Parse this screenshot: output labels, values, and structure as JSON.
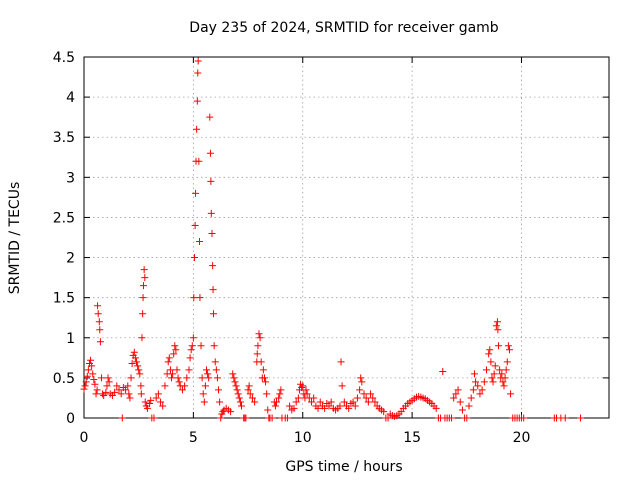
{
  "chart_data": {
    "type": "scatter",
    "title": "Day 235 of 2024, SRMTID for receiver gamb",
    "xlabel": "GPS time / hours",
    "ylabel": "SRMTID / TECUs",
    "xlim": [
      0,
      24
    ],
    "ylim": [
      0,
      4.5
    ],
    "x_ticks": [
      0,
      5,
      10,
      15,
      20
    ],
    "y_ticks": [
      0,
      0.5,
      1,
      1.5,
      2,
      2.5,
      3,
      3.5,
      4,
      4.5
    ],
    "x_tick_labels": [
      "0",
      "5",
      "10",
      "15",
      "20"
    ],
    "y_tick_labels": [
      "0",
      "0.5",
      "1",
      "1.5",
      "2",
      "2.5",
      "3",
      "3.5",
      "4",
      "4.5"
    ],
    "grid": true,
    "marker": "+",
    "series": [
      {
        "name": "SRMTID",
        "color": "#ff0000",
        "points": [
          [
            0.0,
            0.36
          ],
          [
            0.05,
            0.4
          ],
          [
            0.1,
            0.45
          ],
          [
            0.15,
            0.52
          ],
          [
            0.2,
            0.6
          ],
          [
            0.25,
            0.68
          ],
          [
            0.3,
            0.72
          ],
          [
            0.35,
            0.65
          ],
          [
            0.4,
            0.55
          ],
          [
            0.45,
            0.48
          ],
          [
            0.5,
            0.42
          ],
          [
            0.55,
            0.3
          ],
          [
            0.6,
            0.35
          ],
          [
            0.62,
            1.4
          ],
          [
            0.65,
            1.3
          ],
          [
            0.7,
            1.2
          ],
          [
            0.72,
            1.1
          ],
          [
            0.75,
            0.95
          ],
          [
            0.8,
            0.5
          ],
          [
            0.85,
            0.3
          ],
          [
            0.9,
            0.28
          ],
          [
            1.0,
            0.32
          ],
          [
            1.05,
            0.4
          ],
          [
            1.1,
            0.5
          ],
          [
            1.15,
            0.45
          ],
          [
            1.2,
            0.3
          ],
          [
            1.3,
            0.28
          ],
          [
            1.4,
            0.32
          ],
          [
            1.5,
            0.4
          ],
          [
            1.6,
            0.35
          ],
          [
            1.7,
            0.3
          ],
          [
            1.75,
            0.0
          ],
          [
            1.8,
            0.38
          ],
          [
            1.9,
            0.35
          ],
          [
            2.0,
            0.4
          ],
          [
            2.05,
            0.3
          ],
          [
            2.1,
            0.25
          ],
          [
            2.15,
            0.5
          ],
          [
            2.2,
            0.68
          ],
          [
            2.25,
            0.78
          ],
          [
            2.3,
            0.82
          ],
          [
            2.35,
            0.75
          ],
          [
            2.4,
            0.7
          ],
          [
            2.45,
            0.65
          ],
          [
            2.5,
            0.6
          ],
          [
            2.55,
            0.55
          ],
          [
            2.6,
            0.4
          ],
          [
            2.62,
            0.3
          ],
          [
            2.65,
            1.0
          ],
          [
            2.68,
            1.3
          ],
          [
            2.7,
            1.5
          ],
          [
            2.72,
            1.65
          ],
          [
            2.75,
            1.85
          ],
          [
            2.78,
            1.75
          ],
          [
            2.8,
            0.2
          ],
          [
            2.85,
            0.15
          ],
          [
            2.9,
            0.12
          ],
          [
            3.0,
            0.18
          ],
          [
            3.05,
            0.22
          ],
          [
            3.1,
            0.0
          ],
          [
            3.2,
            0.0
          ],
          [
            3.3,
            0.25
          ],
          [
            3.4,
            0.3
          ],
          [
            3.5,
            0.2
          ],
          [
            3.6,
            0.15
          ],
          [
            3.7,
            0.4
          ],
          [
            3.8,
            0.55
          ],
          [
            3.85,
            0.7
          ],
          [
            3.9,
            0.75
          ],
          [
            3.95,
            0.6
          ],
          [
            4.0,
            0.5
          ],
          [
            4.05,
            0.55
          ],
          [
            4.1,
            0.8
          ],
          [
            4.15,
            0.9
          ],
          [
            4.2,
            0.85
          ],
          [
            4.25,
            0.6
          ],
          [
            4.3,
            0.5
          ],
          [
            4.35,
            0.45
          ],
          [
            4.4,
            0.4
          ],
          [
            4.5,
            0.35
          ],
          [
            4.6,
            0.4
          ],
          [
            4.7,
            0.5
          ],
          [
            4.8,
            0.6
          ],
          [
            4.85,
            0.75
          ],
          [
            4.9,
            0.85
          ],
          [
            4.95,
            0.9
          ],
          [
            5.0,
            1.0
          ],
          [
            5.02,
            1.5
          ],
          [
            5.05,
            2.0
          ],
          [
            5.08,
            2.4
          ],
          [
            5.1,
            2.8
          ],
          [
            5.12,
            3.2
          ],
          [
            5.15,
            3.6
          ],
          [
            5.18,
            3.95
          ],
          [
            5.2,
            4.3
          ],
          [
            5.22,
            4.45
          ],
          [
            5.25,
            3.2
          ],
          [
            5.28,
            2.2
          ],
          [
            5.3,
            1.5
          ],
          [
            5.35,
            0.9
          ],
          [
            5.4,
            0.5
          ],
          [
            5.45,
            0.3
          ],
          [
            5.5,
            0.2
          ],
          [
            5.55,
            0.4
          ],
          [
            5.6,
            0.6
          ],
          [
            5.65,
            0.55
          ],
          [
            5.7,
            0.5
          ],
          [
            5.75,
            3.75
          ],
          [
            5.78,
            3.3
          ],
          [
            5.8,
            2.95
          ],
          [
            5.82,
            2.55
          ],
          [
            5.85,
            2.3
          ],
          [
            5.88,
            1.9
          ],
          [
            5.9,
            1.6
          ],
          [
            5.92,
            1.3
          ],
          [
            5.95,
            0.9
          ],
          [
            6.0,
            0.7
          ],
          [
            6.05,
            0.6
          ],
          [
            6.1,
            0.5
          ],
          [
            6.15,
            0.35
          ],
          [
            6.2,
            0.2
          ],
          [
            6.25,
            0.0
          ],
          [
            6.3,
            0.05
          ],
          [
            6.35,
            0.08
          ],
          [
            6.4,
            0.1
          ],
          [
            6.5,
            0.12
          ],
          [
            6.6,
            0.1
          ],
          [
            6.7,
            0.08
          ],
          [
            6.8,
            0.55
          ],
          [
            6.85,
            0.5
          ],
          [
            6.9,
            0.45
          ],
          [
            6.95,
            0.4
          ],
          [
            7.0,
            0.35
          ],
          [
            7.05,
            0.3
          ],
          [
            7.1,
            0.25
          ],
          [
            7.15,
            0.2
          ],
          [
            7.2,
            0.15
          ],
          [
            7.3,
            0.0
          ],
          [
            7.35,
            0.0
          ],
          [
            7.4,
            0.0
          ],
          [
            7.5,
            0.35
          ],
          [
            7.55,
            0.4
          ],
          [
            7.6,
            0.3
          ],
          [
            7.7,
            0.25
          ],
          [
            7.8,
            0.2
          ],
          [
            7.9,
            0.7
          ],
          [
            7.92,
            0.8
          ],
          [
            7.95,
            0.9
          ],
          [
            8.0,
            1.05
          ],
          [
            8.05,
            1.0
          ],
          [
            8.1,
            0.7
          ],
          [
            8.15,
            0.5
          ],
          [
            8.2,
            0.6
          ],
          [
            8.25,
            0.5
          ],
          [
            8.3,
            0.45
          ],
          [
            8.35,
            0.3
          ],
          [
            8.4,
            0.1
          ],
          [
            8.45,
            0.0
          ],
          [
            8.5,
            0.0
          ],
          [
            8.6,
            0.0
          ],
          [
            8.7,
            0.2
          ],
          [
            8.75,
            0.15
          ],
          [
            8.8,
            0.2
          ],
          [
            8.9,
            0.25
          ],
          [
            8.95,
            0.3
          ],
          [
            9.0,
            0.35
          ],
          [
            9.05,
            0.0
          ],
          [
            9.2,
            0.0
          ],
          [
            9.3,
            0.0
          ],
          [
            9.4,
            0.15
          ],
          [
            9.5,
            0.1
          ],
          [
            9.6,
            0.12
          ],
          [
            9.7,
            0.2
          ],
          [
            9.8,
            0.25
          ],
          [
            9.85,
            0.35
          ],
          [
            9.9,
            0.42
          ],
          [
            9.95,
            0.38
          ],
          [
            10.0,
            0.4
          ],
          [
            10.05,
            0.3
          ],
          [
            10.1,
            0.25
          ],
          [
            10.15,
            0.35
          ],
          [
            10.2,
            0.3
          ],
          [
            10.3,
            0.25
          ],
          [
            10.4,
            0.2
          ],
          [
            10.5,
            0.25
          ],
          [
            10.6,
            0.15
          ],
          [
            10.7,
            0.12
          ],
          [
            10.8,
            0.2
          ],
          [
            10.9,
            0.15
          ],
          [
            11.0,
            0.12
          ],
          [
            11.1,
            0.18
          ],
          [
            11.2,
            0.15
          ],
          [
            11.3,
            0.2
          ],
          [
            11.4,
            0.12
          ],
          [
            11.5,
            0.1
          ],
          [
            11.6,
            0.12
          ],
          [
            11.7,
            0.15
          ],
          [
            11.75,
            0.7
          ],
          [
            11.8,
            0.4
          ],
          [
            11.9,
            0.2
          ],
          [
            12.0,
            0.15
          ],
          [
            12.1,
            0.12
          ],
          [
            12.2,
            0.18
          ],
          [
            12.3,
            0.2
          ],
          [
            12.4,
            0.15
          ],
          [
            12.5,
            0.25
          ],
          [
            12.6,
            0.35
          ],
          [
            12.65,
            0.5
          ],
          [
            12.7,
            0.45
          ],
          [
            12.8,
            0.3
          ],
          [
            12.9,
            0.25
          ],
          [
            13.0,
            0.2
          ],
          [
            13.1,
            0.3
          ],
          [
            13.2,
            0.25
          ],
          [
            13.3,
            0.2
          ],
          [
            13.4,
            0.15
          ],
          [
            13.5,
            0.12
          ],
          [
            13.6,
            0.1
          ],
          [
            13.7,
            0.08
          ],
          [
            13.8,
            0.0
          ],
          [
            13.9,
            0.0
          ],
          [
            14.0,
            0.05
          ],
          [
            14.1,
            0.03
          ],
          [
            14.2,
            0.02
          ],
          [
            14.3,
            0.03
          ],
          [
            14.4,
            0.05
          ],
          [
            14.5,
            0.08
          ],
          [
            14.6,
            0.12
          ],
          [
            14.7,
            0.15
          ],
          [
            14.8,
            0.18
          ],
          [
            14.9,
            0.2
          ],
          [
            15.0,
            0.22
          ],
          [
            15.1,
            0.24
          ],
          [
            15.2,
            0.26
          ],
          [
            15.3,
            0.27
          ],
          [
            15.4,
            0.26
          ],
          [
            15.5,
            0.25
          ],
          [
            15.6,
            0.24
          ],
          [
            15.7,
            0.22
          ],
          [
            15.8,
            0.2
          ],
          [
            15.9,
            0.18
          ],
          [
            16.0,
            0.15
          ],
          [
            16.1,
            0.12
          ],
          [
            16.2,
            0.0
          ],
          [
            16.3,
            0.0
          ],
          [
            16.4,
            0.58
          ],
          [
            16.5,
            0.0
          ],
          [
            16.6,
            0.0
          ],
          [
            16.7,
            0.0
          ],
          [
            16.8,
            0.0
          ],
          [
            16.9,
            0.25
          ],
          [
            17.0,
            0.3
          ],
          [
            17.1,
            0.35
          ],
          [
            17.2,
            0.2
          ],
          [
            17.3,
            0.1
          ],
          [
            17.4,
            0.0
          ],
          [
            17.5,
            0.0
          ],
          [
            17.6,
            0.15
          ],
          [
            17.7,
            0.25
          ],
          [
            17.8,
            0.35
          ],
          [
            17.85,
            0.55
          ],
          [
            17.9,
            0.45
          ],
          [
            18.0,
            0.4
          ],
          [
            18.1,
            0.3
          ],
          [
            18.2,
            0.35
          ],
          [
            18.3,
            0.45
          ],
          [
            18.4,
            0.6
          ],
          [
            18.5,
            0.8
          ],
          [
            18.55,
            0.85
          ],
          [
            18.6,
            0.7
          ],
          [
            18.65,
            0.5
          ],
          [
            18.7,
            0.45
          ],
          [
            18.75,
            0.55
          ],
          [
            18.8,
            0.65
          ],
          [
            18.85,
            1.15
          ],
          [
            18.9,
            1.2
          ],
          [
            18.92,
            1.1
          ],
          [
            18.95,
            0.9
          ],
          [
            19.0,
            0.6
          ],
          [
            19.05,
            0.5
          ],
          [
            19.1,
            0.55
          ],
          [
            19.15,
            0.45
          ],
          [
            19.2,
            0.4
          ],
          [
            19.25,
            0.5
          ],
          [
            19.3,
            0.6
          ],
          [
            19.35,
            0.7
          ],
          [
            19.4,
            0.9
          ],
          [
            19.45,
            0.85
          ],
          [
            19.5,
            0.3
          ],
          [
            19.6,
            0.0
          ],
          [
            19.7,
            0.0
          ],
          [
            19.8,
            0.0
          ],
          [
            19.9,
            0.0
          ],
          [
            20.0,
            0.0
          ],
          [
            20.1,
            0.0
          ],
          [
            21.5,
            0.0
          ],
          [
            21.6,
            0.0
          ],
          [
            21.8,
            0.0
          ],
          [
            22.0,
            0.0
          ],
          [
            22.7,
            0.0
          ]
        ]
      }
    ]
  }
}
